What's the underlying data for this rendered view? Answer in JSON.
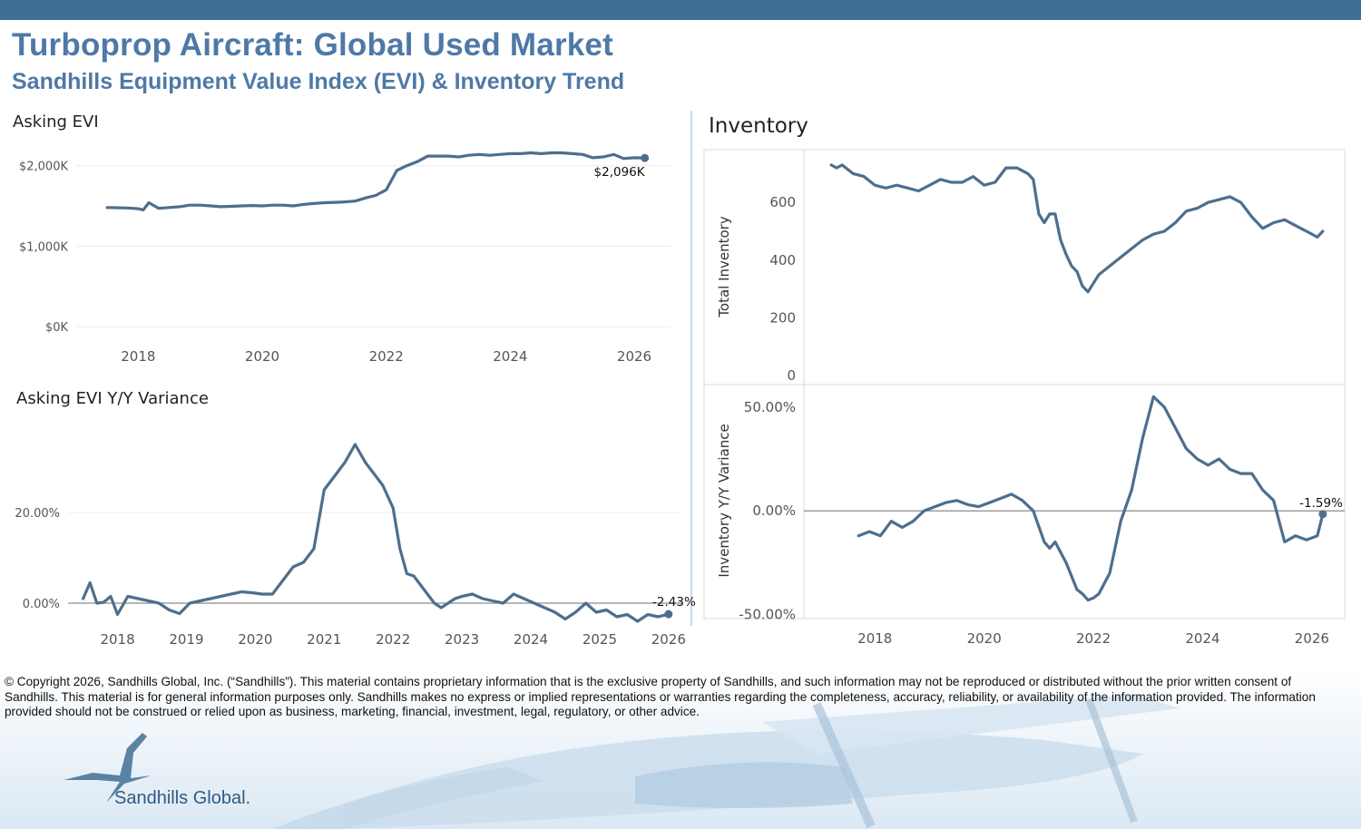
{
  "header": {
    "title": "Turboprop Aircraft: Global Used Market",
    "subtitle": "Sandhills Equipment Value Index (EVI) & Inventory Trend"
  },
  "colors": {
    "line": "#4e6e8e",
    "header_bar": "#3f6f95",
    "title": "#4e79a7",
    "grid": "#ececec",
    "zero": "#8c8c8c"
  },
  "footer": {
    "disclaimer": "© Copyright 2026, Sandhills Global, Inc. (“Sandhills”). This material contains proprietary information that is the exclusive property of Sandhills, and such information may not be reproduced or distributed without the prior written consent of Sandhills. This material is for general information purposes only. Sandhills makes no express or implied representations or warranties regarding the completeness, accuracy, reliability, or availability of the information provided. The information provided should not be construed or relied upon as business, marketing, financial, investment, legal, regulatory, or other advice.",
    "brand": "Sandhills Global."
  },
  "chart_data": [
    {
      "id": "evi",
      "type": "line",
      "title": "Asking EVI",
      "ylabel": "",
      "ylim": [
        0,
        2200
      ],
      "xlim": [
        2017.0,
        2026.6
      ],
      "yticks": [
        {
          "v": 0,
          "label": "$0K"
        },
        {
          "v": 1000,
          "label": "$1,000K"
        },
        {
          "v": 2000,
          "label": "$2,000K"
        }
      ],
      "xticks": [
        {
          "v": 2018,
          "label": "2018"
        },
        {
          "v": 2020,
          "label": "2020"
        },
        {
          "v": 2022,
          "label": "2022"
        },
        {
          "v": 2024,
          "label": "2024"
        },
        {
          "v": 2026,
          "label": "2026"
        }
      ],
      "grid": true,
      "end_label": "$2,096K",
      "x": [
        2017.5,
        2017.83,
        2018.0,
        2018.08,
        2018.17,
        2018.33,
        2018.5,
        2018.67,
        2018.83,
        2019.0,
        2019.17,
        2019.33,
        2019.5,
        2019.67,
        2019.83,
        2020.0,
        2020.17,
        2020.33,
        2020.5,
        2020.67,
        2020.83,
        2021.0,
        2021.17,
        2021.33,
        2021.5,
        2021.67,
        2021.83,
        2022.0,
        2022.17,
        2022.33,
        2022.5,
        2022.67,
        2022.83,
        2023.0,
        2023.17,
        2023.33,
        2023.5,
        2023.67,
        2023.83,
        2024.0,
        2024.17,
        2024.33,
        2024.5,
        2024.67,
        2024.83,
        2025.0,
        2025.17,
        2025.33,
        2025.5,
        2025.67,
        2025.83,
        2026.0,
        2026.17
      ],
      "y": [
        1480,
        1475,
        1465,
        1450,
        1540,
        1470,
        1480,
        1490,
        1510,
        1510,
        1500,
        1490,
        1495,
        1500,
        1505,
        1500,
        1510,
        1510,
        1500,
        1520,
        1530,
        1540,
        1545,
        1550,
        1560,
        1600,
        1630,
        1700,
        1940,
        2000,
        2050,
        2120,
        2120,
        2120,
        2110,
        2130,
        2140,
        2130,
        2140,
        2150,
        2150,
        2160,
        2150,
        2160,
        2160,
        2150,
        2140,
        2100,
        2110,
        2140,
        2090,
        2100,
        2096
      ]
    },
    {
      "id": "evi_yoy",
      "type": "line",
      "title": "Asking EVI Y/Y Variance",
      "ylabel": "",
      "ylim": [
        -5,
        40
      ],
      "xlim": [
        2017.4,
        2026.2
      ],
      "yticks": [
        {
          "v": 0,
          "label": "0.00%"
        },
        {
          "v": 20,
          "label": "20.00%"
        }
      ],
      "xticks": [
        {
          "v": 2018,
          "label": "2018"
        },
        {
          "v": 2019,
          "label": "2019"
        },
        {
          "v": 2020,
          "label": "2020"
        },
        {
          "v": 2021,
          "label": "2021"
        },
        {
          "v": 2022,
          "label": "2022"
        },
        {
          "v": 2023,
          "label": "2023"
        },
        {
          "v": 2024,
          "label": "2024"
        },
        {
          "v": 2025,
          "label": "2025"
        },
        {
          "v": 2026,
          "label": "2026"
        }
      ],
      "grid": true,
      "end_label": "-2.43%",
      "x": [
        2017.5,
        2017.6,
        2017.7,
        2017.8,
        2017.9,
        2018.0,
        2018.15,
        2018.3,
        2018.45,
        2018.6,
        2018.75,
        2018.9,
        2019.05,
        2019.2,
        2019.35,
        2019.5,
        2019.65,
        2019.8,
        2019.95,
        2020.1,
        2020.25,
        2020.4,
        2020.55,
        2020.7,
        2020.85,
        2021.0,
        2021.15,
        2021.3,
        2021.45,
        2021.6,
        2021.75,
        2021.85,
        2022.0,
        2022.1,
        2022.2,
        2022.3,
        2022.45,
        2022.6,
        2022.7,
        2022.8,
        2022.9,
        2023.0,
        2023.15,
        2023.3,
        2023.45,
        2023.6,
        2023.75,
        2023.9,
        2024.05,
        2024.2,
        2024.35,
        2024.5,
        2024.65,
        2024.8,
        2024.95,
        2025.1,
        2025.25,
        2025.4,
        2025.55,
        2025.7,
        2025.85,
        2026.0
      ],
      "y": [
        1,
        4.5,
        0,
        0.2,
        1.5,
        -2.5,
        1.5,
        1.0,
        0.5,
        0,
        -1.5,
        -2.3,
        0,
        0.5,
        1.0,
        1.5,
        2.0,
        2.5,
        2.3,
        2.0,
        2.0,
        5,
        8,
        9,
        12,
        25,
        28,
        31,
        35,
        31,
        28,
        26,
        21,
        12,
        6.5,
        6,
        3,
        0,
        -1,
        0,
        1,
        1.5,
        2,
        1,
        0.5,
        0,
        2,
        1,
        0,
        -1,
        -2,
        -3.5,
        -2,
        0,
        -2,
        -1.5,
        -3,
        -2.5,
        -4,
        -2.5,
        -3,
        -2.43
      ]
    },
    {
      "id": "inventory",
      "type": "line",
      "title": "Inventory",
      "ylabel": "Total Inventory",
      "ylim": [
        0,
        780
      ],
      "xlim": [
        2016.7,
        2026.6
      ],
      "yticks": [
        {
          "v": 0,
          "label": "0"
        },
        {
          "v": 200,
          "label": "200"
        },
        {
          "v": 400,
          "label": "400"
        },
        {
          "v": 600,
          "label": "600"
        }
      ],
      "xticks": [
        {
          "v": 2018,
          "label": "2018"
        },
        {
          "v": 2020,
          "label": "2020"
        },
        {
          "v": 2022,
          "label": "2022"
        },
        {
          "v": 2024,
          "label": "2024"
        },
        {
          "v": 2026,
          "label": "2026"
        }
      ],
      "grid": false,
      "x": [
        2017.2,
        2017.3,
        2017.4,
        2017.6,
        2017.8,
        2018.0,
        2018.2,
        2018.4,
        2018.6,
        2018.8,
        2019.0,
        2019.2,
        2019.4,
        2019.6,
        2019.8,
        2020.0,
        2020.2,
        2020.4,
        2020.6,
        2020.8,
        2020.9,
        2021.0,
        2021.1,
        2021.2,
        2021.3,
        2021.4,
        2021.5,
        2021.6,
        2021.7,
        2021.8,
        2021.9,
        2022.0,
        2022.1,
        2022.3,
        2022.5,
        2022.7,
        2022.9,
        2023.1,
        2023.3,
        2023.5,
        2023.7,
        2023.9,
        2024.1,
        2024.3,
        2024.5,
        2024.7,
        2024.9,
        2025.1,
        2025.3,
        2025.5,
        2025.7,
        2025.9,
        2026.1,
        2026.2
      ],
      "y": [
        730,
        720,
        730,
        700,
        690,
        660,
        650,
        660,
        650,
        640,
        660,
        680,
        670,
        670,
        690,
        660,
        670,
        720,
        720,
        700,
        680,
        560,
        530,
        560,
        560,
        470,
        420,
        380,
        360,
        310,
        290,
        320,
        350,
        380,
        410,
        440,
        470,
        490,
        500,
        530,
        570,
        580,
        600,
        610,
        620,
        600,
        550,
        510,
        530,
        540,
        520,
        500,
        480,
        500
      ]
    },
    {
      "id": "inventory_yoy",
      "type": "line",
      "title": "",
      "ylabel": "Inventory Y/Y Variance",
      "ylim": [
        -55,
        60
      ],
      "xlim": [
        2016.7,
        2026.6
      ],
      "yticks": [
        {
          "v": -50,
          "label": "-50.00%"
        },
        {
          "v": 0,
          "label": "0.00%"
        },
        {
          "v": 50,
          "label": "50.00%"
        }
      ],
      "xticks": [
        {
          "v": 2018,
          "label": "2018"
        },
        {
          "v": 2020,
          "label": "2020"
        },
        {
          "v": 2022,
          "label": "2022"
        },
        {
          "v": 2024,
          "label": "2024"
        },
        {
          "v": 2026,
          "label": "2026"
        }
      ],
      "grid": false,
      "end_label": "-1.59%",
      "x": [
        2017.7,
        2017.9,
        2018.1,
        2018.3,
        2018.5,
        2018.7,
        2018.9,
        2019.1,
        2019.3,
        2019.5,
        2019.7,
        2019.9,
        2020.1,
        2020.3,
        2020.5,
        2020.7,
        2020.9,
        2021.1,
        2021.2,
        2021.3,
        2021.5,
        2021.7,
        2021.8,
        2021.9,
        2022.0,
        2022.1,
        2022.3,
        2022.5,
        2022.7,
        2022.9,
        2023.1,
        2023.3,
        2023.5,
        2023.7,
        2023.9,
        2024.1,
        2024.3,
        2024.5,
        2024.7,
        2024.9,
        2025.1,
        2025.3,
        2025.5,
        2025.7,
        2025.9,
        2026.1,
        2026.2
      ],
      "y": [
        -12,
        -10,
        -12,
        -5,
        -8,
        -5,
        0,
        2,
        4,
        5,
        3,
        2,
        4,
        6,
        8,
        5,
        0,
        -15,
        -18,
        -15,
        -25,
        -38,
        -40,
        -43,
        -42,
        -40,
        -30,
        -5,
        10,
        35,
        55,
        50,
        40,
        30,
        25,
        22,
        25,
        20,
        18,
        18,
        10,
        5,
        -15,
        -12,
        -14,
        -12,
        -1.59
      ]
    }
  ]
}
